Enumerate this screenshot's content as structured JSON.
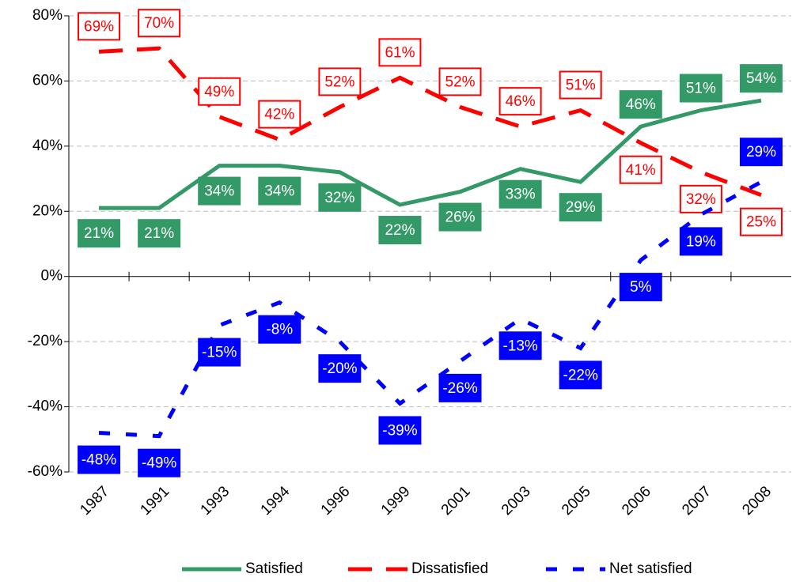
{
  "chart_data": {
    "type": "line",
    "categories": [
      "1987",
      "1991",
      "1993",
      "1994",
      "1996",
      "1999",
      "2001",
      "2003",
      "2005",
      "2006",
      "2007",
      "2008"
    ],
    "ylim": [
      -60,
      80
    ],
    "yticks": [
      {
        "value": -60,
        "label": "-60%"
      },
      {
        "value": -40,
        "label": "-40%"
      },
      {
        "value": -20,
        "label": "-20%"
      },
      {
        "value": 0,
        "label": "0%"
      },
      {
        "value": 20,
        "label": "20%"
      },
      {
        "value": 40,
        "label": "40%"
      },
      {
        "value": 60,
        "label": "60%"
      },
      {
        "value": 80,
        "label": "80%"
      }
    ],
    "grid": true,
    "legend": "bottom",
    "series": [
      {
        "name": "Satisfied",
        "color": "#339966",
        "style": "solid",
        "values": [
          21,
          21,
          34,
          34,
          32,
          22,
          26,
          33,
          29,
          46,
          51,
          54
        ],
        "value_labels": [
          "21%",
          "21%",
          "34%",
          "34%",
          "32%",
          "22%",
          "26%",
          "33%",
          "29%",
          "46%",
          "51%",
          "54%"
        ]
      },
      {
        "name": "Dissatisfied",
        "color": "#ff0000",
        "style": "dashed",
        "values": [
          69,
          70,
          49,
          42,
          52,
          61,
          52,
          46,
          51,
          41,
          32,
          25
        ],
        "value_labels": [
          "69%",
          "70%",
          "49%",
          "42%",
          "52%",
          "61%",
          "52%",
          "46%",
          "51%",
          "41%",
          "32%",
          "25%"
        ]
      },
      {
        "name": "Net satisfied",
        "color": "#0000ff",
        "style": "dashed",
        "values": [
          -48,
          -49,
          -15,
          -8,
          -20,
          -39,
          -26,
          -13,
          -22,
          5,
          19,
          29
        ],
        "value_labels": [
          "-48%",
          "-49%",
          "-15%",
          "-8%",
          "-20%",
          "-39%",
          "-26%",
          "-13%",
          "-22%",
          "5%",
          "19%",
          "29%"
        ]
      }
    ]
  }
}
